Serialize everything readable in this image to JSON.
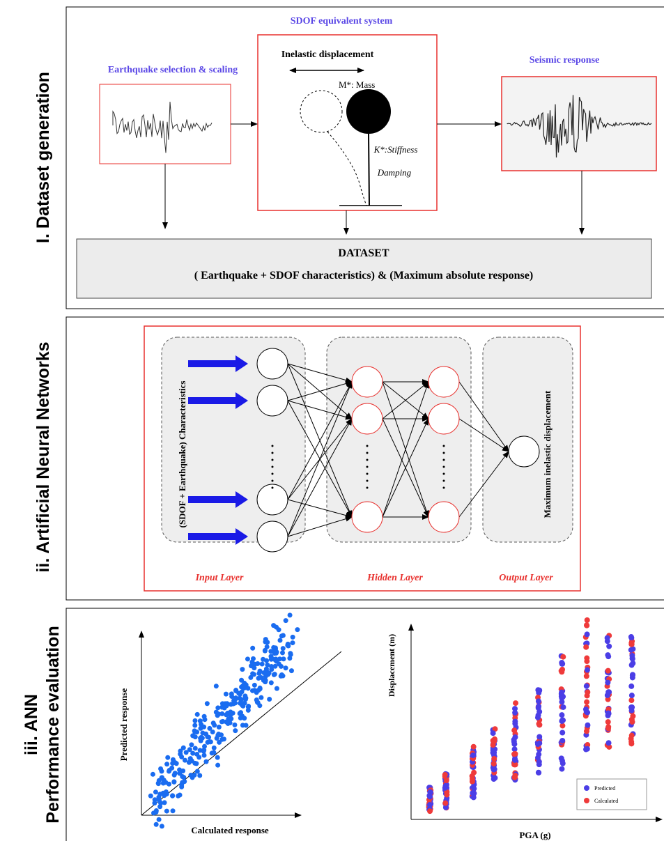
{
  "panels": [
    {
      "label": "I. Dataset generation",
      "sdof_title": "SDOF equivalent system",
      "eq_title": "Earthquake selection & scaling",
      "inelastic": "Inelastic displacement",
      "mass": "M*: Mass",
      "stiffness": "K*:Stiffness",
      "damping": "Damping",
      "response_title": "Seismic response",
      "dataset_title": "DATASET",
      "dataset_desc": "( Earthquake + SDOF characteristics) & (Maximum absolute response)"
    },
    {
      "label": "ii. Artificial Neural Networks",
      "input_desc": "(SDOF + Earthquake) Characteristics",
      "output_desc": "Maximum inelastic displacement",
      "input_layer": "Input Layer",
      "hidden_layer": "Hidden Layer",
      "output_layer": "Output Layer"
    },
    {
      "label_line1": "iii. ANN",
      "label_line2": "Performance evaluation",
      "left_ylabel": "Predicted response",
      "left_xlabel": "Calculated response",
      "right_ylabel": "Displacement (m)",
      "right_xlabel": "PGA (g)",
      "legend": [
        "Predicted",
        "Calculated"
      ]
    }
  ]
}
